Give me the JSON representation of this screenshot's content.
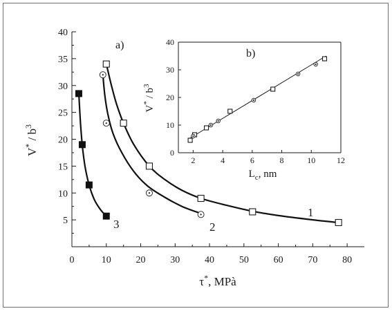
{
  "chart_data": [
    {
      "id": "main",
      "type": "line",
      "panel_label": "a)",
      "xlabel_main": "τ",
      "xlabel_sup": "*",
      "xlabel_rest": ", MPà",
      "ylabel_main": "V",
      "ylabel_sup1": "*",
      "ylabel_mid": " / b",
      "ylabel_sup2": "3",
      "xlim": [
        0,
        85
      ],
      "ylim": [
        0,
        40
      ],
      "xticks": [
        0,
        10,
        20,
        30,
        40,
        50,
        60,
        70,
        80
      ],
      "yticks": [
        5,
        10,
        15,
        20,
        25,
        30,
        35,
        40
      ],
      "series": [
        {
          "label": "1",
          "marker": "open-square",
          "points": [
            [
              10,
              34
            ],
            [
              15,
              23
            ],
            [
              22.5,
              15
            ],
            [
              37.5,
              9
            ],
            [
              52.5,
              6.5
            ],
            [
              77.5,
              4.5
            ]
          ],
          "curve": [
            [
              10,
              34
            ],
            [
              11.5,
              30
            ],
            [
              13,
              26.5
            ],
            [
              15,
              23
            ],
            [
              18,
              19
            ],
            [
              22.5,
              15
            ],
            [
              27,
              12.5
            ],
            [
              32,
              10.5
            ],
            [
              37.5,
              9
            ],
            [
              45,
              7.7
            ],
            [
              52.5,
              6.6
            ],
            [
              60,
              5.8
            ],
            [
              70,
              5
            ],
            [
              77.5,
              4.5
            ]
          ]
        },
        {
          "label": "2",
          "marker": "dotted-circle",
          "points": [
            [
              9,
              32
            ],
            [
              10,
              23
            ],
            [
              22.5,
              10
            ],
            [
              37.5,
              6
            ]
          ],
          "curve": [
            [
              9,
              32
            ],
            [
              9.6,
              28
            ],
            [
              10.5,
              24.5
            ],
            [
              12,
              21
            ],
            [
              14.5,
              17.5
            ],
            [
              18,
              14
            ],
            [
              22,
              11.3
            ],
            [
              27,
              9.2
            ],
            [
              32,
              7.5
            ],
            [
              37,
              6.3
            ]
          ]
        },
        {
          "label": "3",
          "marker": "filled-square",
          "points": [
            [
              2,
              28.5
            ],
            [
              3,
              19
            ],
            [
              5,
              11.5
            ],
            [
              10,
              5.7
            ]
          ],
          "curve": [
            [
              2,
              28.5
            ],
            [
              2.5,
              23
            ],
            [
              3,
              19
            ],
            [
              3.8,
              15
            ],
            [
              5,
              11.5
            ],
            [
              6.5,
              8.8
            ],
            [
              8.2,
              7
            ],
            [
              10,
              5.7
            ]
          ]
        }
      ]
    },
    {
      "id": "inset",
      "type": "scatter",
      "panel_label": "b)",
      "xlabel_main": "L",
      "xlabel_sub": "c",
      "xlabel_rest": ", nm",
      "ylabel_main": "V",
      "ylabel_sup1": "*",
      "ylabel_mid": " / b",
      "ylabel_sup2": "3",
      "xlim": [
        1,
        12
      ],
      "ylim": [
        0,
        40
      ],
      "xticks": [
        2,
        4,
        6,
        8,
        10,
        12
      ],
      "yticks": [
        0,
        10,
        20,
        30,
        40
      ],
      "fit_line": [
        [
          1.7,
          5
        ],
        [
          11,
          35
        ]
      ],
      "series": [
        {
          "marker": "open-square",
          "points": [
            [
              1.8,
              4.5
            ],
            [
              2.1,
              6.5
            ],
            [
              2.9,
              9
            ],
            [
              4.5,
              15
            ],
            [
              7.4,
              23
            ],
            [
              10.9,
              34
            ]
          ]
        },
        {
          "marker": "dotted-circle",
          "points": [
            [
              2.0,
              6
            ],
            [
              3.2,
              10
            ],
            [
              3.7,
              11.5
            ],
            [
              6.1,
              19
            ],
            [
              9.1,
              28.5
            ],
            [
              10.3,
              32
            ]
          ]
        }
      ]
    }
  ]
}
